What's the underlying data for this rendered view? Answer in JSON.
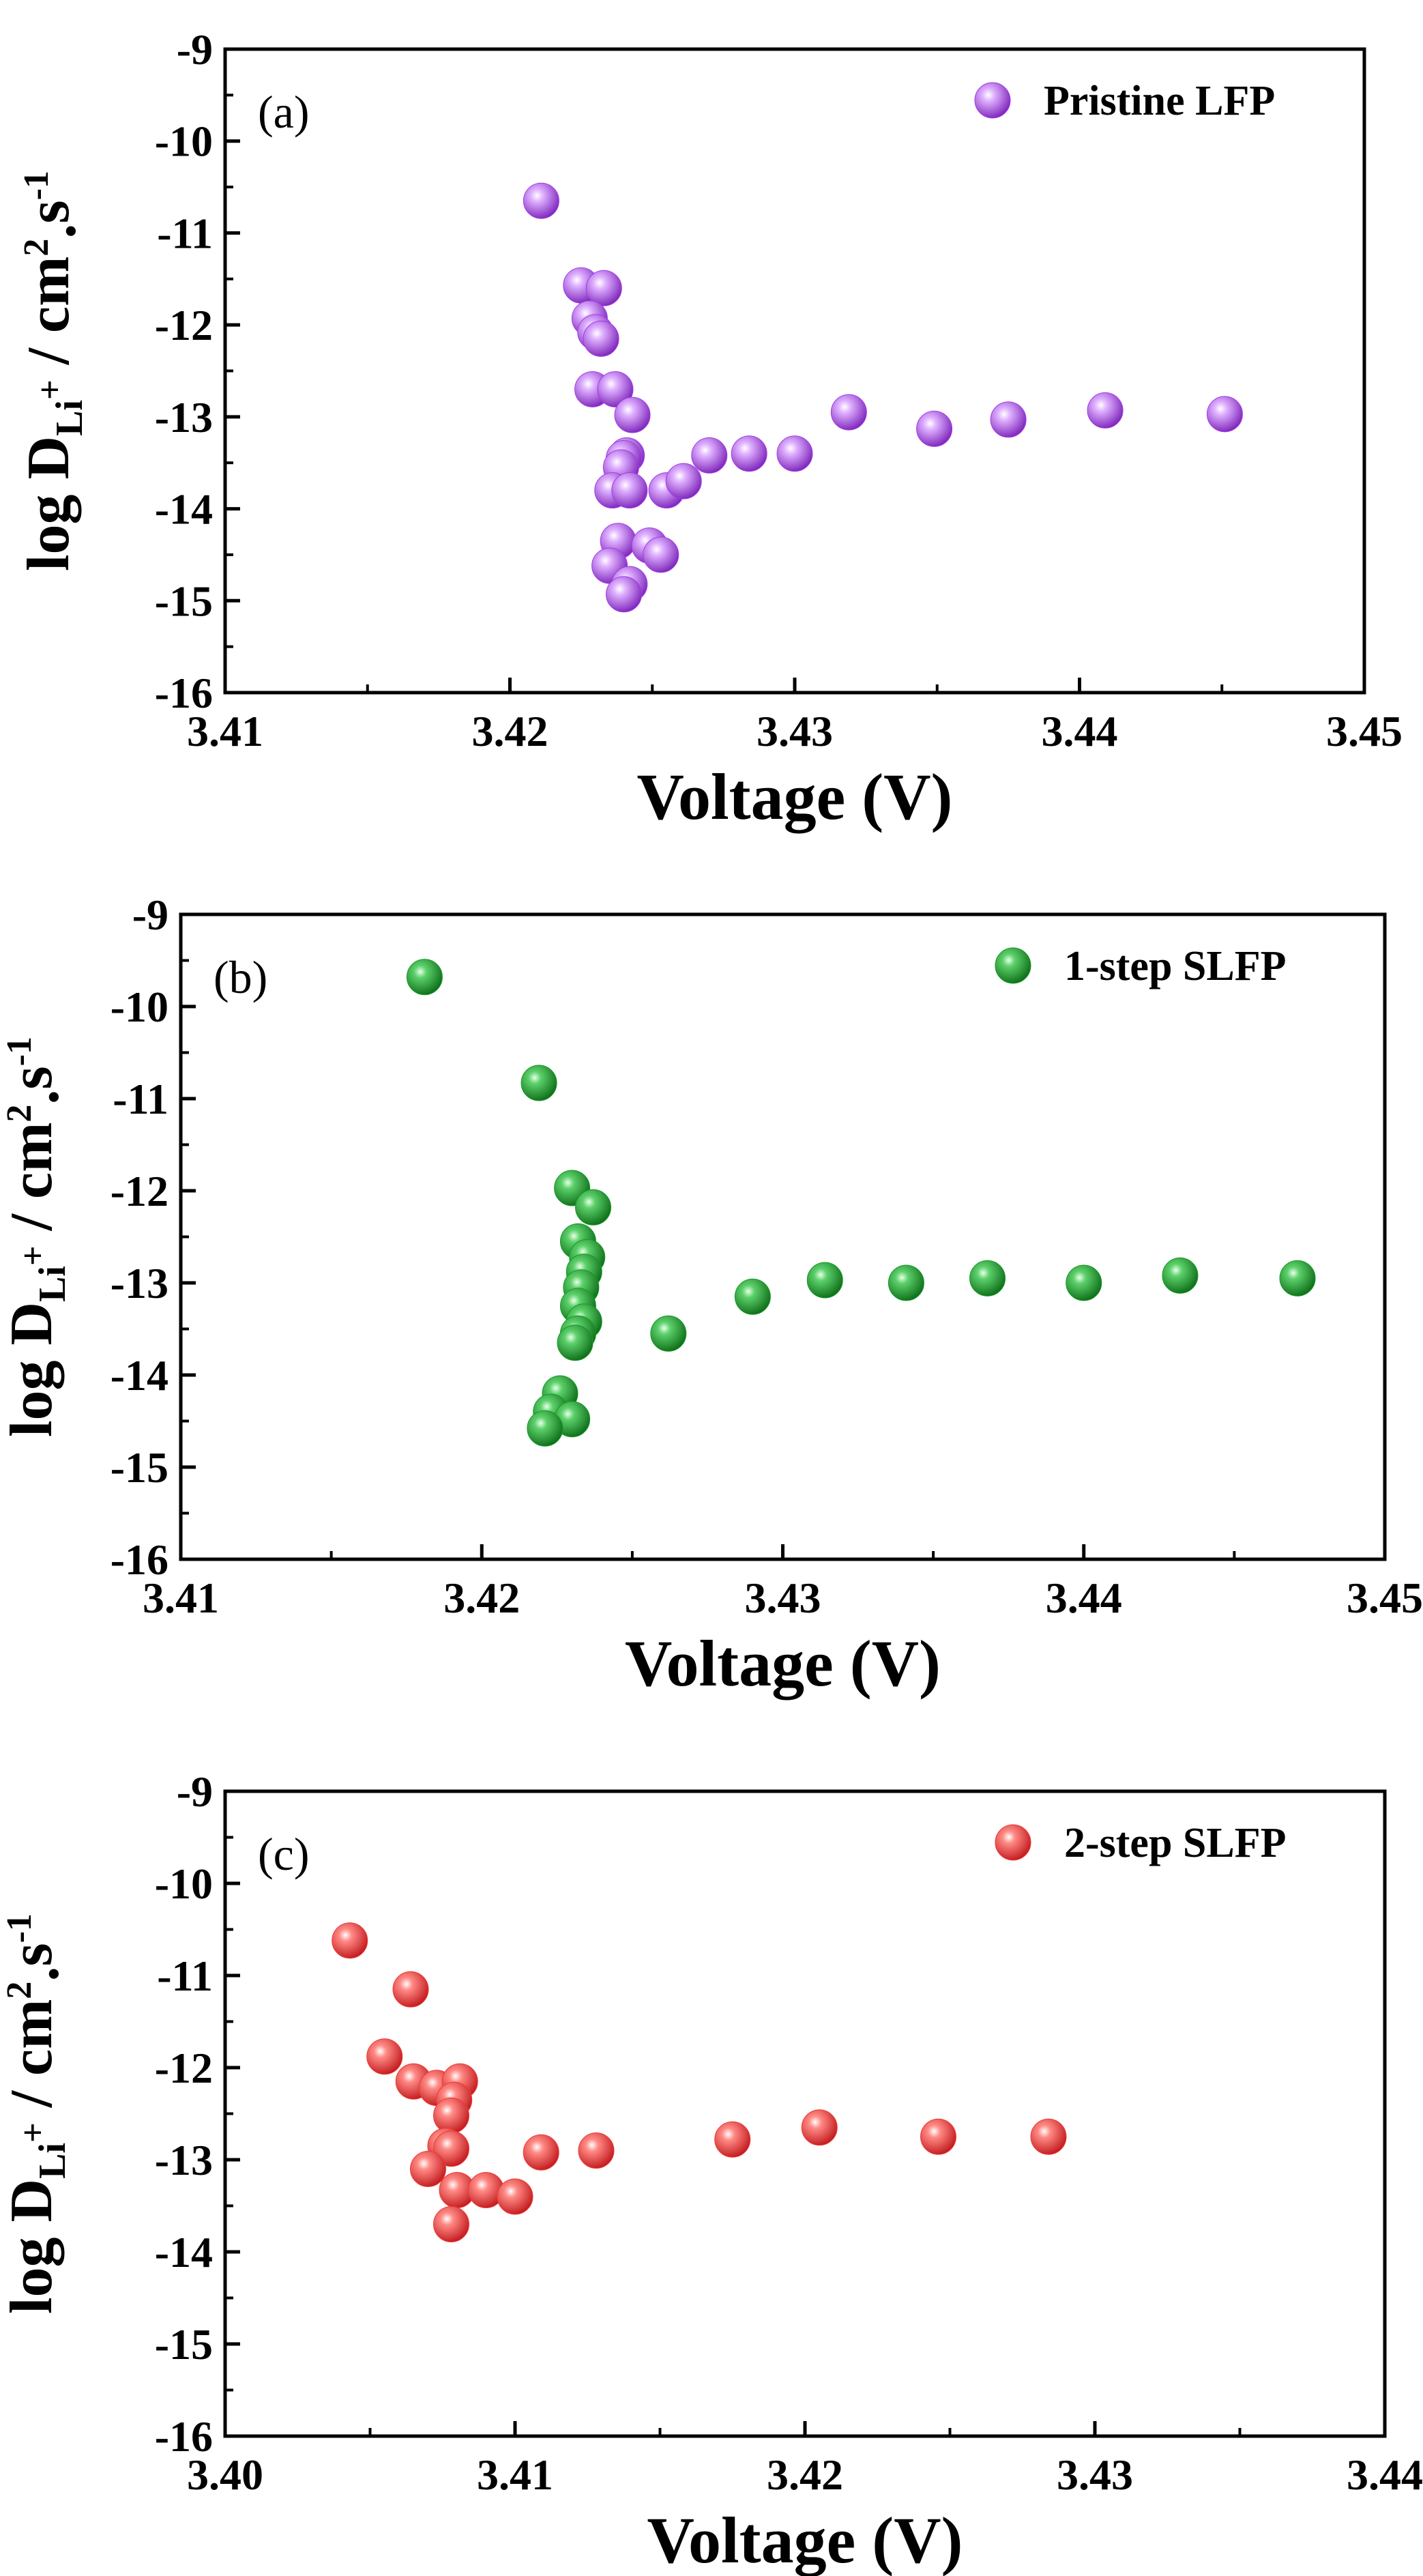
{
  "chart_data": [
    {
      "type": "scatter",
      "panel_label": "(a)",
      "title": "",
      "xlabel": "Voltage (V)",
      "ylabel": {
        "prefix": "log D",
        "subscript": "Li",
        "subscript_sup": "+",
        "unit_main": " / cm",
        "unit_exp": "2",
        "unit_dot": ".",
        "unit_s": "s",
        "unit_s_exp": "-1"
      },
      "xlim": [
        3.41,
        3.45
      ],
      "ylim": [
        -16,
        -9
      ],
      "xticks": [
        3.41,
        3.42,
        3.43,
        3.44,
        3.45
      ],
      "xtick_labels": [
        "3.41",
        "3.42",
        "3.43",
        "3.44",
        "3.45"
      ],
      "yticks": [
        -16,
        -15,
        -14,
        -13,
        -12,
        -11,
        -10,
        -9
      ],
      "ytick_labels": [
        "-16",
        "-15",
        "-14",
        "-13",
        "-12",
        "-11",
        "-10",
        "-9"
      ],
      "legend": "top-right",
      "series": [
        {
          "name": "Pristine LFP",
          "color": "#a23ce8",
          "x": [
            3.4211,
            3.4225,
            3.4233,
            3.4228,
            3.423,
            3.4232,
            3.4229,
            3.4237,
            3.4243,
            3.4241,
            3.424,
            3.4239,
            3.4236,
            3.4242,
            3.4255,
            3.4261,
            3.427,
            3.4284,
            3.43,
            3.4319,
            3.4349,
            3.4375,
            3.4409,
            3.4451,
            3.4238,
            3.4249,
            3.4253,
            3.4235,
            3.4242,
            3.424
          ],
          "y": [
            -10.65,
            -11.57,
            -11.6,
            -11.93,
            -12.08,
            -12.15,
            -12.7,
            -12.7,
            -12.98,
            -13.42,
            -13.45,
            -13.55,
            -13.8,
            -13.8,
            -13.8,
            -13.7,
            -13.42,
            -13.4,
            -13.4,
            -12.95,
            -13.13,
            -13.03,
            -12.93,
            -12.97,
            -14.35,
            -14.4,
            -14.5,
            -14.62,
            -14.82,
            -14.93
          ]
        }
      ]
    },
    {
      "type": "scatter",
      "panel_label": "(b)",
      "title": "",
      "xlabel": "Voltage (V)",
      "ylabel": {
        "prefix": "log D",
        "subscript": "Li",
        "subscript_sup": "+",
        "unit_main": " / cm",
        "unit_exp": "2",
        "unit_dot": ".",
        "unit_s": "s",
        "unit_s_exp": "-1"
      },
      "xlim": [
        3.41,
        3.45
      ],
      "ylim": [
        -16,
        -9
      ],
      "xticks": [
        3.41,
        3.42,
        3.43,
        3.44,
        3.45
      ],
      "xtick_labels": [
        "3.41",
        "3.42",
        "3.43",
        "3.44",
        "3.45"
      ],
      "yticks": [
        -16,
        -15,
        -14,
        -13,
        -12,
        -11,
        -10,
        -9
      ],
      "ytick_labels": [
        "-16",
        "-15",
        "-14",
        "-13",
        "-12",
        "-11",
        "-10",
        "-9"
      ],
      "legend": "top-right",
      "series": [
        {
          "name": "1-step SLFP",
          "color": "#169b24",
          "x": [
            3.4181,
            3.4219,
            3.423,
            3.4237,
            3.4232,
            3.4235,
            3.4234,
            3.4233,
            3.4232,
            3.4234,
            3.4232,
            3.4231,
            3.4262,
            3.429,
            3.4314,
            3.4341,
            3.4368,
            3.44,
            3.4432,
            3.4471,
            3.4226,
            3.4223,
            3.423,
            3.4221
          ],
          "y": [
            -9.68,
            -10.83,
            -11.97,
            -12.18,
            -12.55,
            -12.72,
            -12.88,
            -13.05,
            -13.25,
            -13.42,
            -13.55,
            -13.65,
            -13.55,
            -13.15,
            -12.97,
            -13.0,
            -12.95,
            -13.0,
            -12.92,
            -12.95,
            -14.2,
            -14.4,
            -14.48,
            -14.58
          ]
        }
      ]
    },
    {
      "type": "scatter",
      "panel_label": "(c)",
      "title": "",
      "xlabel": "Voltage (V)",
      "ylabel": {
        "prefix": "log D",
        "subscript": "Li",
        "subscript_sup": "+",
        "unit_main": " / cm",
        "unit_exp": "2",
        "unit_dot": ".",
        "unit_s": "s",
        "unit_s_exp": "-1"
      },
      "xlim": [
        3.4,
        3.44
      ],
      "ylim": [
        -16,
        -9
      ],
      "xticks": [
        3.4,
        3.41,
        3.42,
        3.43,
        3.44
      ],
      "xtick_labels": [
        "3.40",
        "3.41",
        "3.42",
        "3.43",
        "3.44"
      ],
      "yticks": [
        -16,
        -15,
        -14,
        -13,
        -12,
        -11,
        -10,
        -9
      ],
      "ytick_labels": [
        "-16",
        "-15",
        "-14",
        "-13",
        "-12",
        "-11",
        "-10",
        "-9"
      ],
      "legend": "top-right",
      "series": [
        {
          "name": "2-step SLFP",
          "color": "#f03a35",
          "x": [
            3.4043,
            3.4064,
            3.4055,
            3.4065,
            3.4073,
            3.4081,
            3.4079,
            3.4078,
            3.4076,
            3.4078,
            3.407,
            3.408,
            3.4078,
            3.409,
            3.41,
            3.4109,
            3.4128,
            3.4175,
            3.4205,
            3.4246,
            3.4284
          ],
          "y": [
            -10.62,
            -11.15,
            -11.88,
            -12.15,
            -12.22,
            -12.15,
            -12.35,
            -12.52,
            -12.85,
            -12.88,
            -13.1,
            -13.33,
            -13.7,
            -13.33,
            -13.4,
            -12.92,
            -12.9,
            -12.78,
            -12.65,
            -12.75,
            -12.75
          ]
        }
      ]
    }
  ]
}
